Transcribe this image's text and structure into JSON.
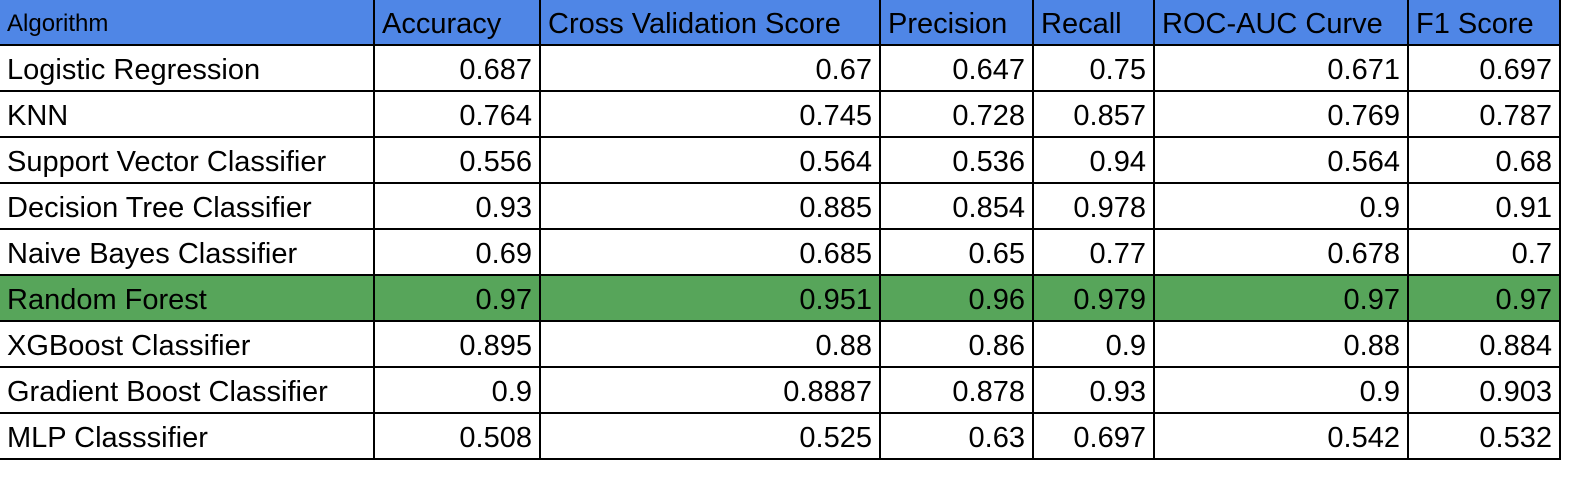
{
  "colors": {
    "header_bg": "#4f86e6",
    "highlight_row_bg": "#57a55a",
    "grid_line": "#000000"
  },
  "columns": [
    "Algorithm",
    "Accuracy",
    "Cross Validation Score",
    "Precision",
    "Recall",
    "ROC-AUC Curve",
    "F1 Score"
  ],
  "rows": [
    {
      "algorithm": "Logistic Regression",
      "accuracy": "0.687",
      "cv": "0.67",
      "precision": "0.647",
      "recall": "0.75",
      "roc": "0.671",
      "f1": "0.697"
    },
    {
      "algorithm": "KNN",
      "accuracy": "0.764",
      "cv": "0.745",
      "precision": "0.728",
      "recall": "0.857",
      "roc": "0.769",
      "f1": "0.787"
    },
    {
      "algorithm": "Support Vector Classifier",
      "accuracy": "0.556",
      "cv": "0.564",
      "precision": "0.536",
      "recall": "0.94",
      "roc": "0.564",
      "f1": "0.68"
    },
    {
      "algorithm": "Decision Tree Classifier",
      "accuracy": "0.93",
      "cv": "0.885",
      "precision": "0.854",
      "recall": "0.978",
      "roc": "0.9",
      "f1": "0.91"
    },
    {
      "algorithm": "Naive Bayes Classifier",
      "accuracy": "0.69",
      "cv": "0.685",
      "precision": "0.65",
      "recall": "0.77",
      "roc": "0.678",
      "f1": "0.7"
    },
    {
      "algorithm": "Random Forest",
      "accuracy": "0.97",
      "cv": "0.951",
      "precision": "0.96",
      "recall": "0.979",
      "roc": "0.97",
      "f1": "0.97",
      "highlighted": true
    },
    {
      "algorithm": "XGBoost Classifier",
      "accuracy": "0.895",
      "cv": "0.88",
      "precision": "0.86",
      "recall": "0.9",
      "roc": "0.88",
      "f1": "0.884"
    },
    {
      "algorithm": "Gradient Boost Classifier",
      "accuracy": "0.9",
      "cv": "0.8887",
      "precision": "0.878",
      "recall": "0.93",
      "roc": "0.9",
      "f1": "0.903"
    },
    {
      "algorithm": "MLP Classsifier",
      "accuracy": "0.508",
      "cv": "0.525",
      "precision": "0.63",
      "recall": "0.697",
      "roc": "0.542",
      "f1": "0.532"
    }
  ]
}
